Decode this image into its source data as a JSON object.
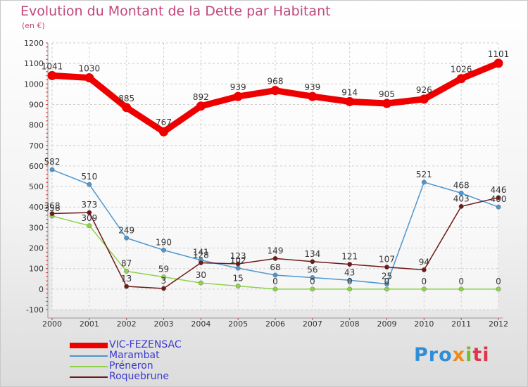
{
  "title": "Evolution du Montant de la Dette par Habitant",
  "unit": "(en €)",
  "logo": [
    "Pro",
    "x",
    "i",
    "ti"
  ],
  "chart_data": {
    "type": "line",
    "title": "Evolution du Montant de la Dette par Habitant",
    "subtitle": "(en €)",
    "x": [
      "2000",
      "2001",
      "2002",
      "2003",
      "2004",
      "2005",
      "2006",
      "2007",
      "2008",
      "2009",
      "2010",
      "2011",
      "2012"
    ],
    "ylim": [
      -100,
      1200
    ],
    "yticks": [
      "-100",
      "0",
      "100",
      "200",
      "300",
      "400",
      "500",
      "600",
      "700",
      "800",
      "900",
      "1000",
      "1100",
      "1200"
    ],
    "grid": true,
    "legend": "bottom-left",
    "series": [
      {
        "name": "VIC-FEZENSAC",
        "color": "#ee0000",
        "values": [
          1041,
          1030,
          885,
          767,
          892,
          939,
          968,
          939,
          914,
          905,
          926,
          1026,
          1101
        ],
        "labels": [
          "1041",
          "1030",
          "885",
          "767",
          "892",
          "939",
          "968",
          "939",
          "914",
          "905",
          "926",
          "1026",
          "1101"
        ]
      },
      {
        "name": "Marambat",
        "color": "#4d96cf",
        "values": [
          582,
          510,
          249,
          190,
          141,
          102,
          68,
          56,
          43,
          25,
          521,
          468,
          400
        ],
        "labels": [
          "582",
          "510",
          "249",
          "190",
          "141",
          "102",
          "68",
          "56",
          "43",
          "25",
          "521",
          "468",
          "400"
        ]
      },
      {
        "name": "Préneron",
        "color": "#8fd24a",
        "values": [
          356,
          309,
          87,
          59,
          30,
          15,
          0,
          0,
          0,
          0,
          0,
          0,
          0
        ],
        "labels": [
          "356",
          "309",
          "87",
          "59",
          "30",
          "15",
          "0",
          "0",
          "0",
          "0",
          "0",
          "0",
          "0"
        ]
      },
      {
        "name": "Roquebrune",
        "color": "#6e1a1a",
        "values": [
          368,
          373,
          13,
          3,
          128,
          123,
          149,
          134,
          121,
          107,
          94,
          403,
          446
        ],
        "labels": [
          "368",
          "373",
          "13",
          "3",
          "128",
          "123",
          "149",
          "134",
          "121",
          "107",
          "94",
          "403",
          "446"
        ]
      }
    ]
  }
}
